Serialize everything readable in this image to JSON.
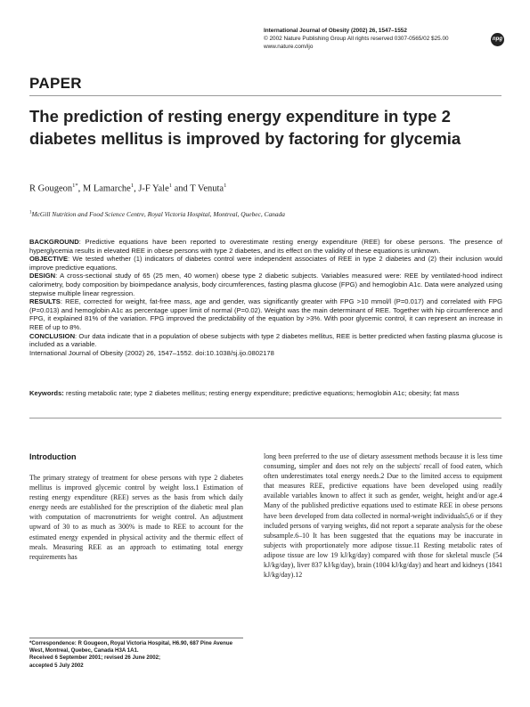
{
  "header": {
    "journal_line": "International Journal of Obesity (2002) 26, 1547–1552",
    "copyright_line": "© 2002 Nature Publishing Group  All rights reserved  0307-0565/02 $25.00",
    "url": "www.nature.com/ijo",
    "logo": "npg"
  },
  "section_label": "PAPER",
  "title": "The prediction of resting energy expenditure in type 2 diabetes mellitus is improved by factoring for glycemia",
  "authors": [
    {
      "name": "R Gougeon",
      "sup": "1*"
    },
    {
      "name": "M Lamarche",
      "sup": "1"
    },
    {
      "name": "J-F Yale",
      "sup": "1"
    },
    {
      "name": "T Venuta",
      "sup": "1"
    }
  ],
  "affiliation": {
    "sup": "1",
    "text": "McGill Nutrition and Food Science Centre, Royal Victoria Hospital, Montreal, Quebec, Canada"
  },
  "abstract": {
    "background_label": "BACKGROUND",
    "background": ": Predictive equations have been reported to overestimate resting energy expenditure (REE) for obese persons. The presence of hyperglycemia results in elevated REE in obese persons with type 2 diabetes, and its effect on the validity of these equations is unknown.",
    "objective_label": "OBJECTIVE",
    "objective": ": We tested whether (1) indicators of diabetes control were independent associates of REE in type 2 diabetes and (2) their inclusion would improve predictive equations.",
    "design_label": "DESIGN",
    "design": ": A cross-sectional study of 65 (25 men, 40 women) obese type 2 diabetic subjects. Variables measured were: REE by ventilated-hood indirect calorimetry, body composition by bioimpedance analysis, body circumferences, fasting plasma glucose (FPG) and hemoglobin A1c. Data were analyzed using stepwise multiple linear regression.",
    "results_label": "RESULTS",
    "results": ": REE, corrected for weight, fat-free mass, age and gender, was significantly greater with FPG >10 mmol/l (P=0.017) and correlated with FPG (P=0.013) and hemoglobin A1c as percentage upper limit of normal (P=0.02). Weight was the main determinant of REE. Together with hip circumference and FPG, it explained 81% of the variation. FPG improved the predictability of the equation by >3%. With poor glycemic control, it can represent an increase in REE of up to 8%.",
    "conclusion_label": "CONCLUSION",
    "conclusion": ": Our data indicate that in a population of obese subjects with type 2 diabetes mellitus, REE is better predicted when fasting plasma glucose is included as a variable.",
    "citation": "International Journal of Obesity (2002) 26, 1547–1552. doi:10.1038/sj.ijo.0802178"
  },
  "keywords": {
    "label": "Keywords:",
    "text": "resting metabolic rate; type 2 diabetes mellitus; resting energy expenditure; predictive equations; hemoglobin A1c; obesity; fat mass"
  },
  "intro_heading": "Introduction",
  "col1_text": "The primary strategy of treatment for obese persons with type 2 diabetes mellitus is improved glycemic control by weight loss.1 Estimation of resting energy expenditure (REE) serves as the basis from which daily energy needs are established for the prescription of the diabetic meal plan with computation of macronutrients for weight control. An adjustment upward of 30 to as much as 300% is made to REE to account for the estimated energy expended in physical activity and the thermic effect of meals. Measuring REE as an approach to estimating total energy requirements has",
  "col2_text": "long been preferred to the use of dietary assessment methods because it is less time consuming, simpler and does not rely on the subjects' recall of food eaten, which often underestimates total energy needs.2 Due to the limited access to equipment that measures REE, predictive equations have been developed using readily available variables known to affect it such as gender, weight, height and/or age.4 Many of the published predictive equations used to estimate REE in obese persons have been developed from data collected in normal-weight individuals5,6 or if they included persons of varying weights, did not report a separate analysis for the obese subsample.6–10 It has been suggested that the equations may be inaccurate in subjects with proportionately more adipose tissue.11 Resting metabolic rates of adipose tissue are low 19 kJ/kg/day) compared with those for skeletal muscle (54 kJ/kg/day), liver 837 kJ/kg/day), brain (1004 kJ/kg/day) and heart and kidneys (1841 kJ/kg/day).12",
  "footnote": {
    "correspondence": "*Correspondence: R Gougeon, Royal Victoria Hospital, H6.90, 687 Pine Avenue West, Montreal, Quebec, Canada H3A 1A1.",
    "received": "Received 6 September 2001; revised 26 June 2002;",
    "accepted": "accepted 5 July 2002"
  }
}
